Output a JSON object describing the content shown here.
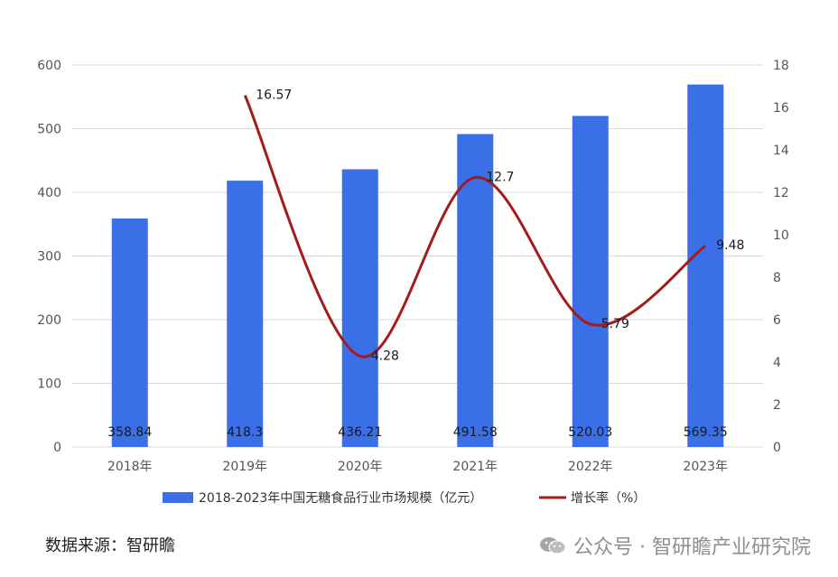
{
  "chart_data": {
    "type": "bar",
    "categories": [
      "2018年",
      "2019年",
      "2020年",
      "2021年",
      "2022年",
      "2023年"
    ],
    "series": [
      {
        "name": "2018-2023年中国无糖食品行业市场规模（亿元）",
        "type": "bar",
        "axis": "left",
        "values": [
          358.84,
          418.3,
          436.21,
          491.58,
          520.03,
          569.35
        ],
        "labels": [
          "358.84",
          "418.3",
          "436.21",
          "491.58",
          "520.03",
          "569.35"
        ],
        "color": "#3a6fe8"
      },
      {
        "name": "增长率（%）",
        "type": "line",
        "axis": "right",
        "values": [
          null,
          16.57,
          4.28,
          12.7,
          5.79,
          9.48
        ],
        "labels": [
          "",
          "16.57",
          "4.28",
          "12.7",
          "5.79",
          "9.48"
        ],
        "color": "#a31b1b"
      }
    ],
    "y_left": {
      "min": 0,
      "max": 600,
      "ticks": [
        "0",
        "100",
        "200",
        "300",
        "400",
        "500",
        "600"
      ]
    },
    "y_right": {
      "min": 0,
      "max": 18,
      "ticks": [
        "0",
        "2",
        "4",
        "6",
        "8",
        "10",
        "12",
        "14",
        "16",
        "18"
      ]
    },
    "grid": true,
    "legend": "bottom"
  },
  "source_text": "数据来源：智研瞻",
  "watermark": {
    "icon": "wechat-icon",
    "text": "公众号 · 智研瞻产业研究院"
  }
}
